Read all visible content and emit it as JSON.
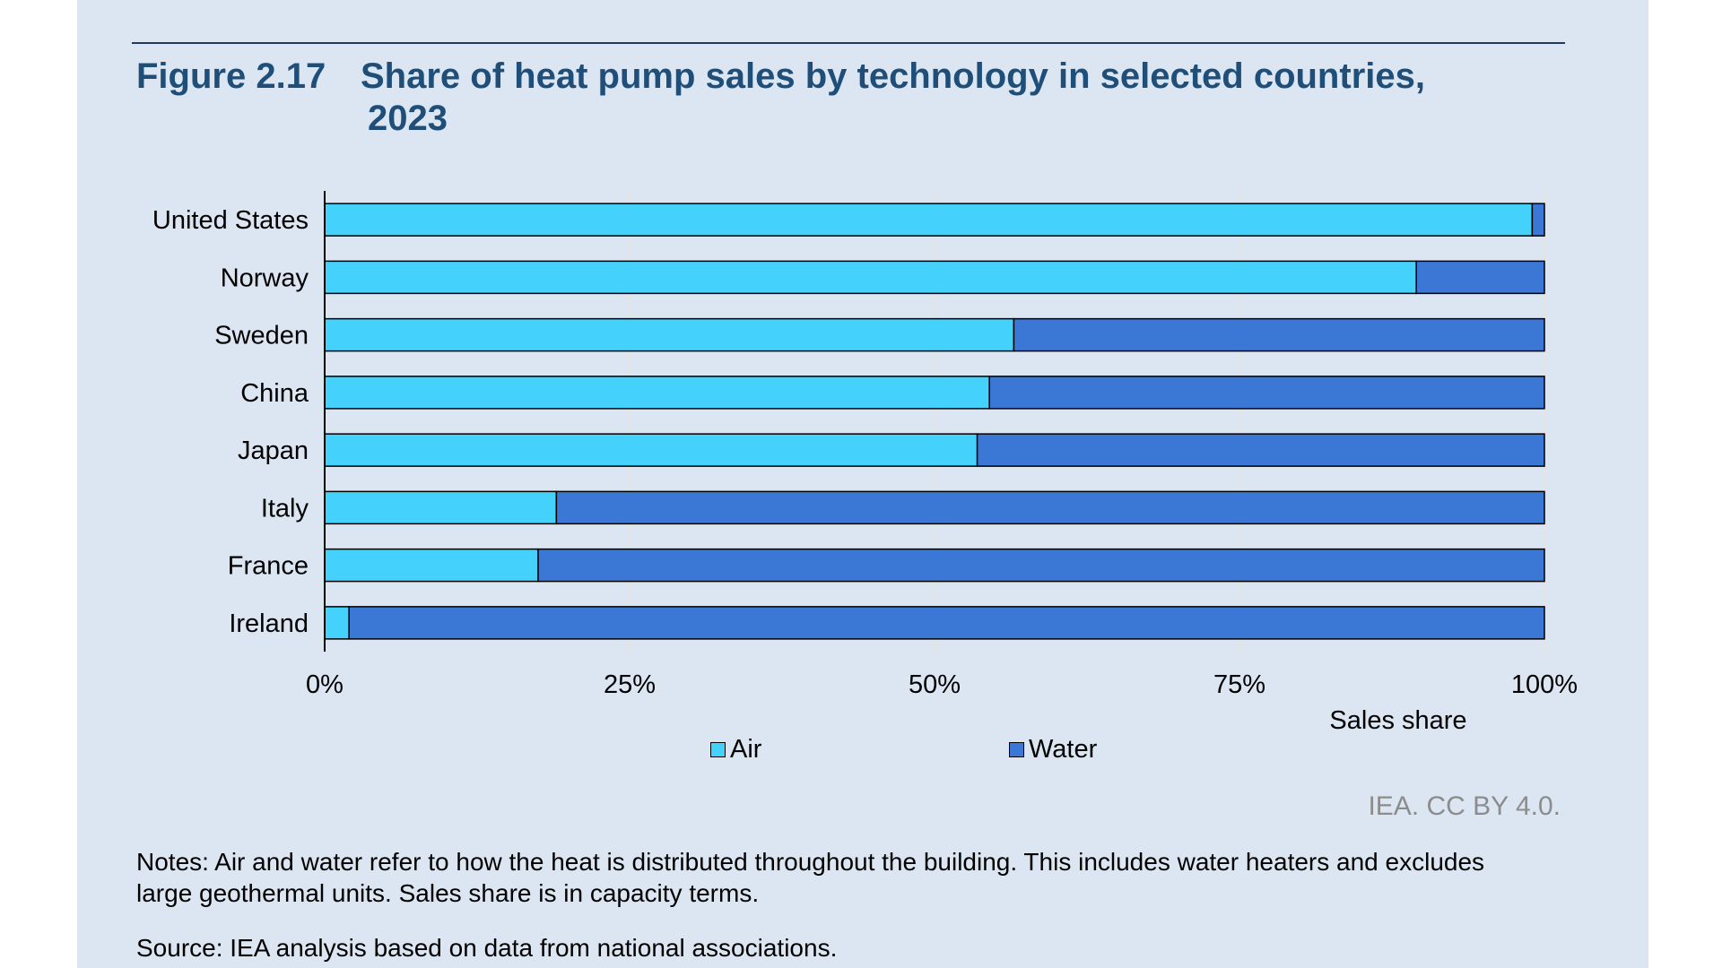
{
  "figure": {
    "number": "Figure 2.17",
    "title_line1": "Share of heat pump sales by technology in selected countries,",
    "title_line2": "2023"
  },
  "chart_data": {
    "type": "bar",
    "orientation": "horizontal",
    "stacked": true,
    "categories": [
      "United States",
      "Norway",
      "Sweden",
      "China",
      "Japan",
      "Italy",
      "France",
      "Ireland"
    ],
    "series": [
      {
        "name": "Air",
        "color": "#44d1fb",
        "values": [
          99,
          89.5,
          56.5,
          54.5,
          53.5,
          19,
          17.5,
          2
        ]
      },
      {
        "name": "Water",
        "color": "#3b78d6",
        "values": [
          1,
          10.5,
          43.5,
          45.5,
          46.5,
          81,
          82.5,
          98
        ]
      }
    ],
    "xlim": [
      0,
      100
    ],
    "xticks": [
      "0%",
      "25%",
      "50%",
      "75%",
      "100%"
    ],
    "xlabel": "Sales share",
    "ylabel": "",
    "legend": [
      "Air",
      "Water"
    ],
    "gridlines": "vertical"
  },
  "credit": "IEA. CC BY 4.0.",
  "notes": "Notes: Air and water refer to how the heat is distributed throughout the building. This includes water heaters and excludes large geothermal units. Sales share is in capacity terms.",
  "source": "Source: IEA analysis based on data from national associations."
}
